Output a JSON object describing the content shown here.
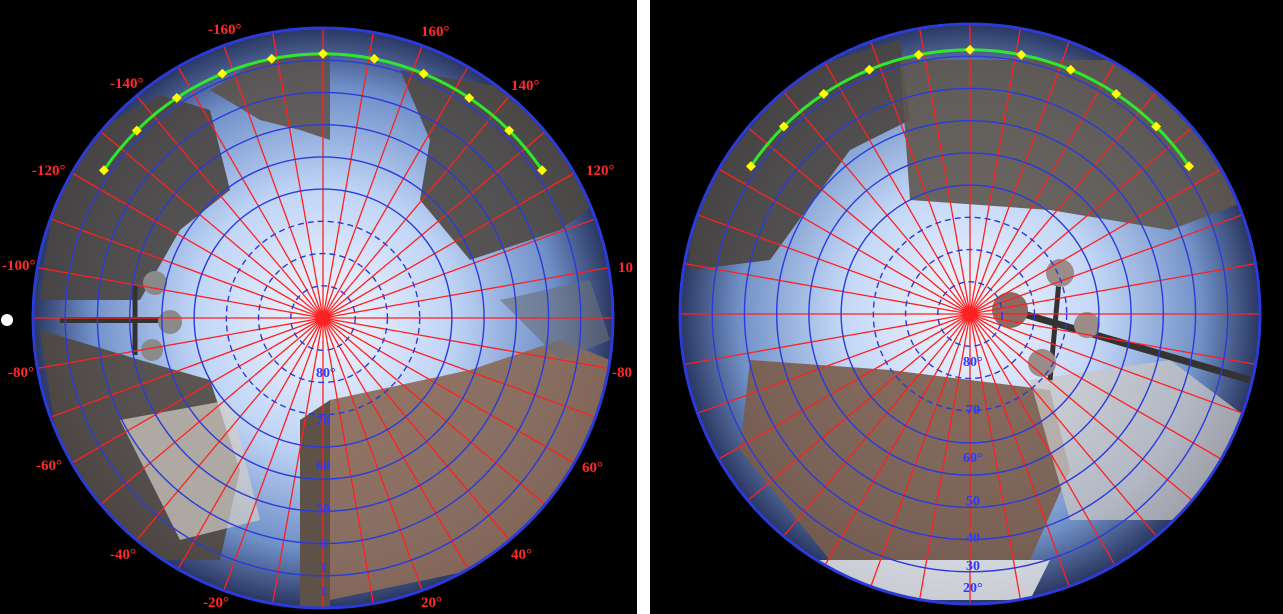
{
  "panels": [
    {
      "id": "left",
      "azimuth_labels": {
        "n160": "-160°",
        "p160": "160°",
        "n140": "-140°",
        "p140": "140°",
        "n120": "-120°",
        "p120": "120°",
        "n100": "-100°",
        "p100": "10",
        "n80": "-80°",
        "p80": "-80",
        "n60": "-60°",
        "p60": "60°",
        "n40": "-40°",
        "p40": "40°",
        "n20": "-20°",
        "p20": "20°"
      },
      "elevation_labels": {
        "e80": "80°",
        "e70": "70",
        "e60": "60",
        "e50": "50",
        "e40": "0",
        "e30": "1",
        "e20": "1"
      }
    },
    {
      "id": "right",
      "elevation_labels": {
        "e80": "80°",
        "e70": "70",
        "e60": "60°",
        "e50": "50",
        "e40": "40",
        "e30": "30",
        "e20": "20°"
      }
    }
  ],
  "colors": {
    "background": "#000000",
    "sky": "#cfe0fb",
    "azimuth_grid": "#ff2020",
    "elevation_grid": "#2b3bd8",
    "sun_path": "#2ee82e",
    "sun_markers": "#ffff00"
  },
  "icons": [
    "fisheye-photo",
    "sun-path-curve",
    "street-lamp"
  ]
}
